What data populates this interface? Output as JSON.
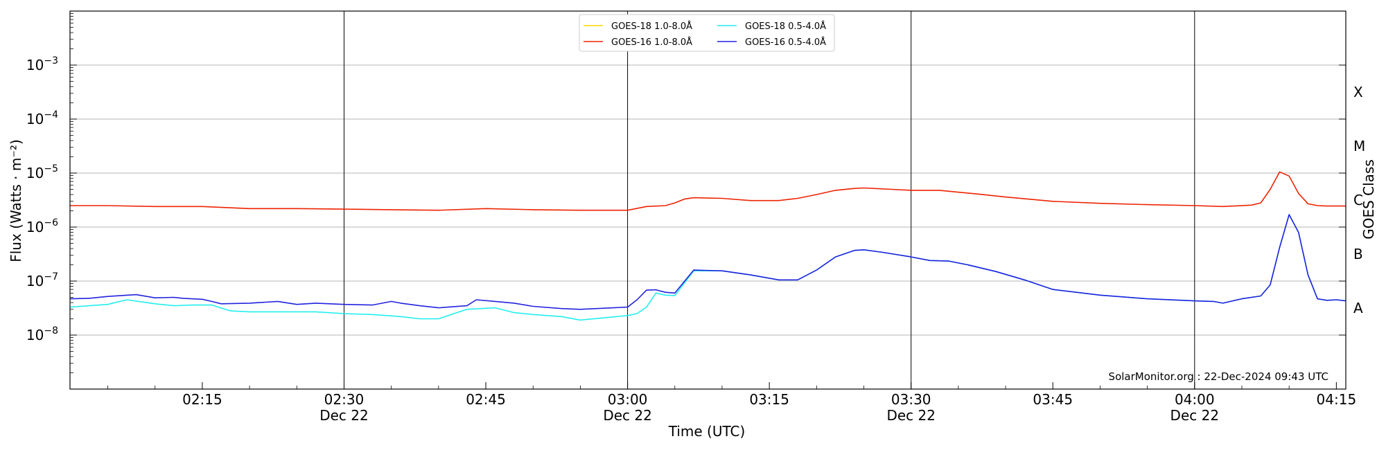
{
  "chart_data": {
    "type": "line",
    "ylabel": "Flux (Watts · m⁻²)",
    "xlabel": "Time (UTC)",
    "right_ylabel": "GOES Class",
    "y_scale": "log",
    "ylim": [
      1e-09,
      0.01
    ],
    "xlim": [
      "02:01",
      "04:16"
    ],
    "grid": "horizontal",
    "legend_position": "top-center",
    "y_ticks": [
      {
        "value": 1e-08,
        "mant": "10",
        "exp": "−8"
      },
      {
        "value": 1e-07,
        "mant": "10",
        "exp": "−7"
      },
      {
        "value": 1e-06,
        "mant": "10",
        "exp": "−6"
      },
      {
        "value": 1e-05,
        "mant": "10",
        "exp": "−5"
      },
      {
        "value": 0.0001,
        "mant": "10",
        "exp": "−4"
      },
      {
        "value": 0.001,
        "mant": "10",
        "exp": "−3"
      }
    ],
    "x_ticks": [
      {
        "time": "02:15",
        "label": "02:15",
        "date": ""
      },
      {
        "time": "02:30",
        "label": "02:30",
        "date": "Dec 22"
      },
      {
        "time": "02:45",
        "label": "02:45",
        "date": ""
      },
      {
        "time": "03:00",
        "label": "03:00",
        "date": "Dec 22"
      },
      {
        "time": "03:15",
        "label": "03:15",
        "date": ""
      },
      {
        "time": "03:30",
        "label": "03:30",
        "date": "Dec 22"
      },
      {
        "time": "03:45",
        "label": "03:45",
        "date": ""
      },
      {
        "time": "04:00",
        "label": "04:00",
        "date": "Dec 22"
      },
      {
        "time": "04:15",
        "label": "04:15",
        "date": ""
      }
    ],
    "vertical_lines": [
      "02:30",
      "03:00",
      "03:30",
      "04:00"
    ],
    "goes_classes": [
      {
        "label": "A",
        "value": 3.16e-08
      },
      {
        "label": "B",
        "value": 3.16e-07
      },
      {
        "label": "C",
        "value": 3.16e-06
      },
      {
        "label": "M",
        "value": 3.16e-05
      },
      {
        "label": "X",
        "value": 0.000316
      }
    ],
    "series": [
      {
        "name": "GOES-18 1.0-8.0Å",
        "color": "#ffd700",
        "x": [],
        "values": []
      },
      {
        "name": "GOES-16 1.0-8.0Å",
        "color": "#ee2200",
        "x": [
          "02:01",
          "02:05",
          "02:10",
          "02:15",
          "02:20",
          "02:25",
          "02:30",
          "02:35",
          "02:40",
          "02:45",
          "02:50",
          "02:55",
          "03:00",
          "03:02",
          "03:04",
          "03:05",
          "03:06",
          "03:07",
          "03:10",
          "03:13",
          "03:16",
          "03:18",
          "03:20",
          "03:22",
          "03:24",
          "03:25",
          "03:28",
          "03:30",
          "03:33",
          "03:37",
          "03:40",
          "03:45",
          "03:50",
          "03:55",
          "04:00",
          "04:03",
          "04:06",
          "04:07",
          "04:08",
          "04:09",
          "04:10",
          "04:11",
          "04:12",
          "04:13",
          "04:14",
          "04:16"
        ],
        "values": [
          2.5e-06,
          2.5e-06,
          2.4e-06,
          2.4e-06,
          2.2e-06,
          2.2e-06,
          2.15e-06,
          2.1e-06,
          2.05e-06,
          2.2e-06,
          2.1e-06,
          2.05e-06,
          2.05e-06,
          2.4e-06,
          2.5e-06,
          2.8e-06,
          3.3e-06,
          3.5e-06,
          3.4e-06,
          3.1e-06,
          3.1e-06,
          3.4e-06,
          4e-06,
          4.8e-06,
          5.2e-06,
          5.3e-06,
          5e-06,
          4.8e-06,
          4.8e-06,
          4.1e-06,
          3.6e-06,
          3e-06,
          2.75e-06,
          2.6e-06,
          2.5e-06,
          2.4e-06,
          2.55e-06,
          2.8e-06,
          5e-06,
          1.05e-05,
          8.8e-06,
          4.2e-06,
          2.7e-06,
          2.5e-06,
          2.45e-06,
          2.45e-06
        ]
      },
      {
        "name": "GOES-18 0.5-4.0Å",
        "color": "#22eeee",
        "x": [
          "02:01",
          "02:05",
          "02:07",
          "02:10",
          "02:12",
          "02:14",
          "02:16",
          "02:18",
          "02:20",
          "02:25",
          "02:27",
          "02:30",
          "02:33",
          "02:36",
          "02:38",
          "02:40",
          "02:43",
          "02:46",
          "02:48",
          "02:50",
          "02:53",
          "02:55",
          "03:00",
          "03:01",
          "03:02",
          "03:03",
          "03:04",
          "03:05",
          "03:07",
          "03:10",
          "03:13",
          "03:16",
          "03:18",
          "03:20",
          "03:22",
          "03:24",
          "03:25",
          "03:27",
          "03:30",
          "03:32",
          "03:34",
          "03:36",
          "03:39",
          "03:42",
          "03:45",
          "03:50",
          "03:55",
          "04:00",
          "04:02",
          "04:03",
          "04:05",
          "04:07",
          "04:08",
          "04:09",
          "04:10",
          "04:11",
          "04:12",
          "04:13",
          "04:14",
          "04:15",
          "04:16"
        ],
        "values": [
          3.3e-08,
          3.7e-08,
          4.5e-08,
          3.8e-08,
          3.5e-08,
          3.6e-08,
          3.6e-08,
          2.8e-08,
          2.7e-08,
          2.7e-08,
          2.7e-08,
          2.5e-08,
          2.4e-08,
          2.2e-08,
          2e-08,
          2e-08,
          3e-08,
          3.2e-08,
          2.6e-08,
          2.4e-08,
          2.2e-08,
          1.9e-08,
          2.3e-08,
          2.5e-08,
          3.3e-08,
          6e-08,
          5.5e-08,
          5.4e-08,
          1.55e-07,
          1.55e-07,
          1.3e-07,
          1.05e-07,
          1.05e-07,
          1.6e-07,
          2.8e-07,
          3.7e-07,
          3.8e-07,
          3.4e-07,
          2.8e-07,
          2.4e-07,
          2.35e-07,
          2e-07,
          1.5e-07,
          1.05e-07,
          7e-08,
          5.5e-08,
          4.7e-08,
          4.3e-08,
          4.2e-08,
          3.9e-08,
          4.7e-08,
          5.3e-08,
          8.5e-08,
          4.2e-07,
          1.7e-06,
          8e-07,
          1.3e-07,
          4.7e-08,
          4.4e-08,
          4.5e-08,
          4.3e-08
        ]
      },
      {
        "name": "GOES-16 0.5-4.0Å",
        "color": "#2222dd",
        "x": [
          "02:01",
          "02:03",
          "02:05",
          "02:08",
          "02:10",
          "02:12",
          "02:13",
          "02:15",
          "02:16",
          "02:17",
          "02:20",
          "02:23",
          "02:25",
          "02:27",
          "02:30",
          "02:33",
          "02:35",
          "02:36",
          "02:38",
          "02:40",
          "02:43",
          "02:44",
          "02:46",
          "02:48",
          "02:50",
          "02:53",
          "02:55",
          "03:00",
          "03:01",
          "03:02",
          "03:03",
          "03:04",
          "03:05",
          "03:07",
          "03:10",
          "03:13",
          "03:16",
          "03:18",
          "03:20",
          "03:22",
          "03:24",
          "03:25",
          "03:27",
          "03:30",
          "03:32",
          "03:34",
          "03:36",
          "03:39",
          "03:42",
          "03:45",
          "03:50",
          "03:55",
          "04:00",
          "04:02",
          "04:03",
          "04:05",
          "04:07",
          "04:08",
          "04:09",
          "04:10",
          "04:11",
          "04:12",
          "04:13",
          "04:14",
          "04:15",
          "04:16"
        ],
        "values": [
          4.7e-08,
          4.8e-08,
          5.2e-08,
          5.6e-08,
          4.9e-08,
          5e-08,
          4.8e-08,
          4.6e-08,
          4.2e-08,
          3.8e-08,
          3.9e-08,
          4.2e-08,
          3.7e-08,
          3.9e-08,
          3.7e-08,
          3.6e-08,
          4.2e-08,
          3.9e-08,
          3.5e-08,
          3.2e-08,
          3.5e-08,
          4.5e-08,
          4.2e-08,
          3.9e-08,
          3.4e-08,
          3.1e-08,
          3e-08,
          3.3e-08,
          4.5e-08,
          6.8e-08,
          6.9e-08,
          6.2e-08,
          6e-08,
          1.6e-07,
          1.55e-07,
          1.3e-07,
          1.05e-07,
          1.05e-07,
          1.6e-07,
          2.8e-07,
          3.7e-07,
          3.8e-07,
          3.4e-07,
          2.8e-07,
          2.4e-07,
          2.35e-07,
          2e-07,
          1.5e-07,
          1.05e-07,
          7e-08,
          5.5e-08,
          4.7e-08,
          4.3e-08,
          4.2e-08,
          3.9e-08,
          4.7e-08,
          5.3e-08,
          8.5e-08,
          4.2e-07,
          1.7e-06,
          8e-07,
          1.3e-07,
          4.7e-08,
          4.4e-08,
          4.5e-08,
          4.3e-08
        ]
      }
    ],
    "credit": "SolarMonitor.org : 22-Dec-2024 09:43 UTC"
  }
}
